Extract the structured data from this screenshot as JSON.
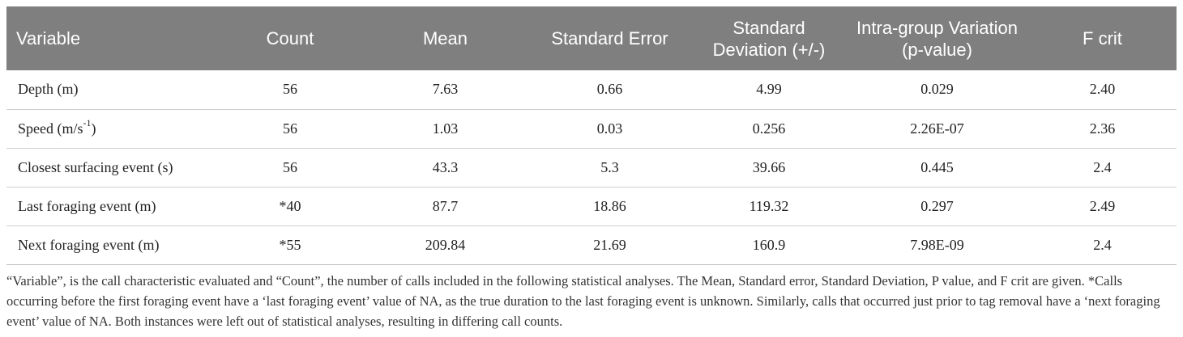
{
  "table": {
    "headers": [
      "Variable",
      "Count",
      "Mean",
      "Standard Error",
      "Standard Deviation (+/-)",
      "Intra-group Variation (p-value)",
      "F crit"
    ],
    "rows": [
      {
        "variable": "Depth (m)",
        "variable_sup": "",
        "variable_tail": "",
        "count": "56",
        "mean": "7.63",
        "se": "0.66",
        "sd": "4.99",
        "p": "0.029",
        "fcrit": "2.40"
      },
      {
        "variable": "Speed (m/s",
        "variable_sup": "-1",
        "variable_tail": ")",
        "count": "56",
        "mean": "1.03",
        "se": "0.03",
        "sd": "0.256",
        "p": "2.26E-07",
        "fcrit": "2.36"
      },
      {
        "variable": "Closest surfacing event (s)",
        "variable_sup": "",
        "variable_tail": "",
        "count": "56",
        "mean": "43.3",
        "se": "5.3",
        "sd": "39.66",
        "p": "0.445",
        "fcrit": "2.4"
      },
      {
        "variable": "Last foraging event (m)",
        "variable_sup": "",
        "variable_tail": "",
        "count": "*40",
        "mean": "87.7",
        "se": "18.86",
        "sd": "119.32",
        "p": "0.297",
        "fcrit": "2.49"
      },
      {
        "variable": "Next foraging event (m)",
        "variable_sup": "",
        "variable_tail": "",
        "count": "*55",
        "mean": "209.84",
        "se": "21.69",
        "sd": "160.9",
        "p": "7.98E-09",
        "fcrit": "2.4"
      }
    ]
  },
  "caption": "“Variable”, is the call characteristic evaluated and “Count”, the number of calls included in the following statistical analyses. The Mean, Standard error, Standard Deviation, P value, and F crit are given. *Calls occurring before the first foraging event have a ‘last foraging event’ value of NA, as the true duration to the last foraging event is unknown. Similarly, calls that occurred just prior to tag removal have a ‘next foraging event’ value of NA. Both instances were left out of statistical analyses, resulting in differing call counts.",
  "colors": {
    "header_bg": "#7f7f7f",
    "header_text": "#ffffff",
    "row_divider": "#cfcfcf"
  }
}
